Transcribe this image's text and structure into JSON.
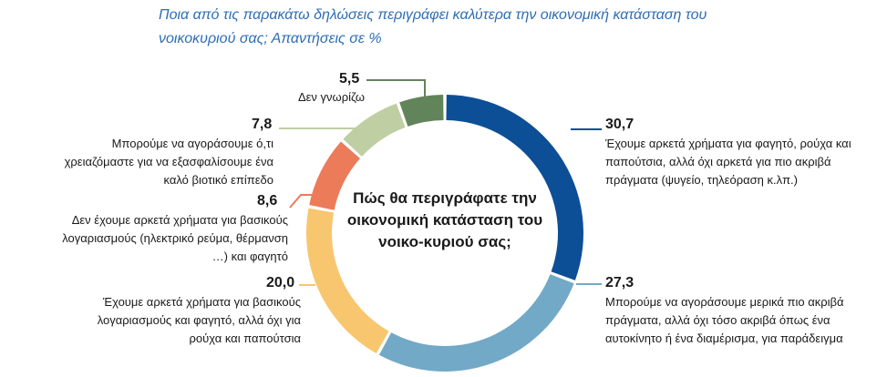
{
  "chart_data": {
    "type": "pie",
    "variant": "donut",
    "title": "Ποια από τις παρακάτω δηλώσεις περιγράφει καλύτερα την οικονομική κατάσταση του νοικοκυριού σας; Απαντήσεις σε %",
    "center_label": "Πώς θα περιγράφατε την οικονομική κατάσταση του νοικο-κυριού σας;",
    "slices": [
      {
        "label": "Έχουμε αρκετά χρήματα για φαγητό, ρούχα και παπούτσια, αλλά όχι αρκετά για πιο ακριβά πράγματα (ψυγείο, τηλεόραση κ.λπ.)",
        "value": 30.7,
        "value_text": "30,7",
        "color": "#0d4f96"
      },
      {
        "label": "Μπορούμε να αγοράσουμε μερικά πιο ακριβά πράγματα, αλλά όχι τόσο ακριβά όπως ένα αυτοκίνητο ή ένα διαμέρισμα, για παράδειγμα",
        "value": 27.3,
        "value_text": "27,3",
        "color": "#72a9c6"
      },
      {
        "label": "Έχουμε αρκετά χρήματα για βασικούς λογαριασμούς και φαγητό, αλλά όχι για ρούχα και παπούτσια",
        "value": 20.0,
        "value_text": "20,0",
        "color": "#f7c66e"
      },
      {
        "label": "Δεν έχουμε αρκετά χρήματα για βασικούς λογαριασμούς (ηλεκτρικό ρεύμα, θέρμανση …) και φαγητό",
        "value": 8.6,
        "value_text": "8,6",
        "color": "#ec7b5a"
      },
      {
        "label": "Μπορούμε να αγοράσουμε ό,τι χρειαζόμαστε για να εξασφαλίσουμε ένα καλό βιοτικό επίπεδο",
        "value": 7.8,
        "value_text": "7,8",
        "color": "#bfcea3"
      },
      {
        "label": "Δεν γνωρίζω",
        "value": 5.5,
        "value_text": "5,5",
        "color": "#62845a"
      }
    ]
  }
}
